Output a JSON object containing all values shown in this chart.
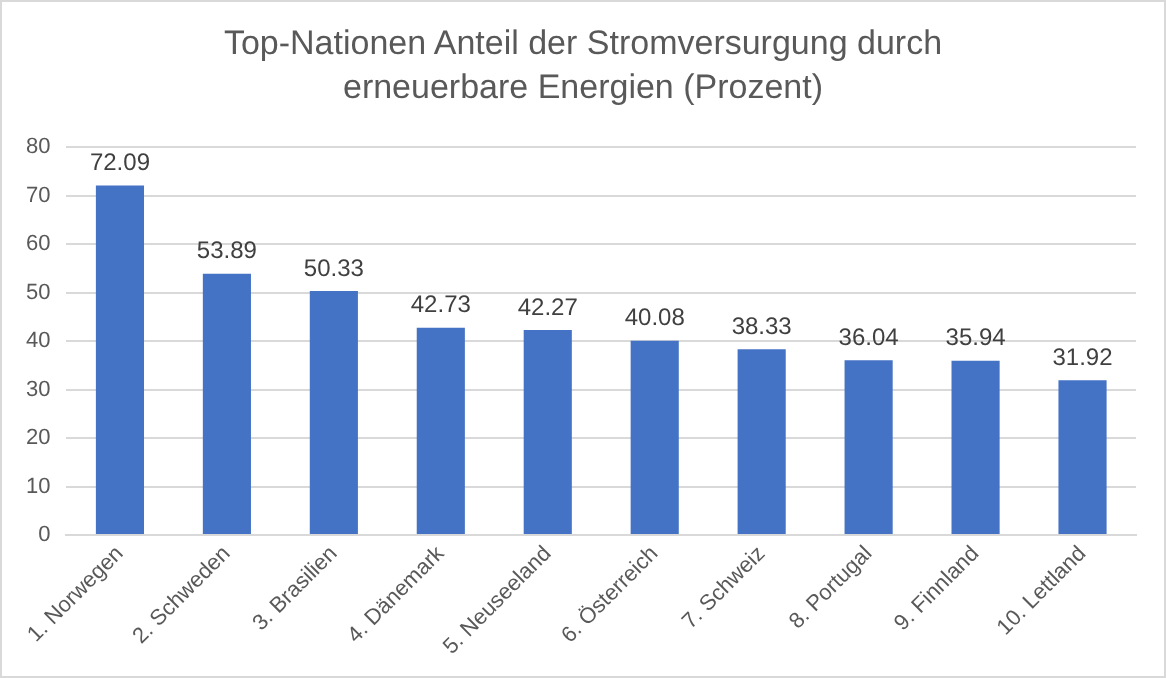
{
  "chart_data": {
    "type": "bar",
    "title": "Top-Nationen Anteil der Stromversurgung durch erneuerbare Energien (Prozent)",
    "categories": [
      "1. Norwegen",
      "2. Schweden",
      "3. Brasilien",
      "4. Dänemark",
      "5. Neuseeland",
      "6. Österreich",
      "7. Schweiz",
      "8. Portugal",
      "9. Finnland",
      "10. Lettland"
    ],
    "values": [
      72.09,
      53.89,
      50.33,
      42.73,
      42.27,
      40.08,
      38.33,
      36.04,
      35.94,
      31.92
    ],
    "color": "#4472c4",
    "ylim": [
      0,
      80
    ],
    "yticks": [
      0,
      10,
      20,
      30,
      40,
      50,
      60,
      70,
      80
    ],
    "grid": "y",
    "data_labels": true,
    "legend": false
  }
}
